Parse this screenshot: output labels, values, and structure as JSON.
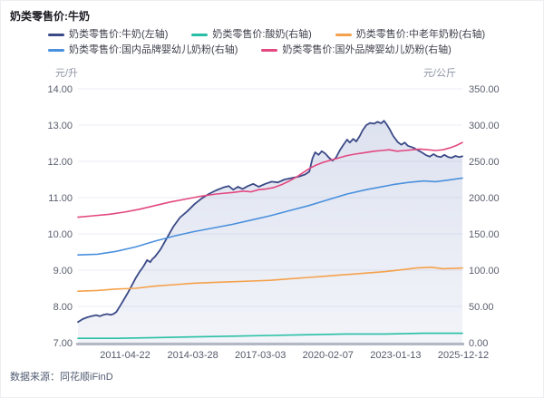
{
  "header": {
    "title": "奶类零售价:牛奶"
  },
  "footer": {
    "source": "数据来源：同花顺iFinD"
  },
  "chart_data": {
    "type": "line",
    "title": "奶类零售价:牛奶",
    "grid": true,
    "legend_position": "top-left",
    "left_axis": {
      "unit": "元/升",
      "min": 7,
      "max": 14,
      "ticks": [
        "14.00",
        "13.00",
        "12.00",
        "11.00",
        "10.00",
        "9.00",
        "8.00",
        "7.00"
      ]
    },
    "right_axis": {
      "unit": "元/公斤",
      "min": 0,
      "max": 350,
      "ticks": [
        "350.00",
        "300.00",
        "250.00",
        "200.00",
        "150.00",
        "100.00",
        "50.00",
        "0.00"
      ]
    },
    "x_axis": {
      "tick_labels": [
        "2011-04-22",
        "2014-03-28",
        "2017-03-03",
        "2020-02-07",
        "2023-01-13",
        "2025-12-12"
      ]
    },
    "series": [
      {
        "name": "奶类零售价:牛奶(左轴)",
        "axis": "left",
        "color": "#3b4a87",
        "area": true,
        "points": [
          [
            0.0,
            7.57
          ],
          [
            0.012,
            7.65
          ],
          [
            0.024,
            7.7
          ],
          [
            0.035,
            7.73
          ],
          [
            0.047,
            7.76
          ],
          [
            0.057,
            7.73
          ],
          [
            0.066,
            7.77
          ],
          [
            0.076,
            7.79
          ],
          [
            0.085,
            7.77
          ],
          [
            0.092,
            7.79
          ],
          [
            0.1,
            7.85
          ],
          [
            0.11,
            8.02
          ],
          [
            0.12,
            8.2
          ],
          [
            0.13,
            8.38
          ],
          [
            0.14,
            8.58
          ],
          [
            0.15,
            8.78
          ],
          [
            0.16,
            8.95
          ],
          [
            0.17,
            9.1
          ],
          [
            0.18,
            9.28
          ],
          [
            0.188,
            9.22
          ],
          [
            0.193,
            9.3
          ],
          [
            0.201,
            9.38
          ],
          [
            0.215,
            9.58
          ],
          [
            0.232,
            9.9
          ],
          [
            0.248,
            10.2
          ],
          [
            0.265,
            10.45
          ],
          [
            0.284,
            10.62
          ],
          [
            0.303,
            10.82
          ],
          [
            0.322,
            10.98
          ],
          [
            0.34,
            11.1
          ],
          [
            0.359,
            11.2
          ],
          [
            0.378,
            11.28
          ],
          [
            0.392,
            11.32
          ],
          [
            0.404,
            11.22
          ],
          [
            0.416,
            11.3
          ],
          [
            0.428,
            11.24
          ],
          [
            0.442,
            11.32
          ],
          [
            0.456,
            11.38
          ],
          [
            0.47,
            11.3
          ],
          [
            0.487,
            11.38
          ],
          [
            0.504,
            11.44
          ],
          [
            0.52,
            11.42
          ],
          [
            0.537,
            11.5
          ],
          [
            0.556,
            11.54
          ],
          [
            0.575,
            11.58
          ],
          [
            0.591,
            11.64
          ],
          [
            0.602,
            11.72
          ],
          [
            0.61,
            12.08
          ],
          [
            0.617,
            12.25
          ],
          [
            0.626,
            12.18
          ],
          [
            0.634,
            12.28
          ],
          [
            0.643,
            12.22
          ],
          [
            0.653,
            12.1
          ],
          [
            0.662,
            12.02
          ],
          [
            0.671,
            12.1
          ],
          [
            0.681,
            12.3
          ],
          [
            0.69,
            12.45
          ],
          [
            0.7,
            12.6
          ],
          [
            0.707,
            12.52
          ],
          [
            0.716,
            12.62
          ],
          [
            0.724,
            12.55
          ],
          [
            0.733,
            12.7
          ],
          [
            0.74,
            12.85
          ],
          [
            0.75,
            13.0
          ],
          [
            0.76,
            13.06
          ],
          [
            0.77,
            13.04
          ],
          [
            0.779,
            13.09
          ],
          [
            0.789,
            13.05
          ],
          [
            0.796,
            13.12
          ],
          [
            0.803,
            13.02
          ],
          [
            0.811,
            12.88
          ],
          [
            0.82,
            12.7
          ],
          [
            0.832,
            12.53
          ],
          [
            0.841,
            12.46
          ],
          [
            0.85,
            12.52
          ],
          [
            0.858,
            12.43
          ],
          [
            0.872,
            12.38
          ],
          [
            0.882,
            12.32
          ],
          [
            0.894,
            12.25
          ],
          [
            0.906,
            12.17
          ],
          [
            0.915,
            12.13
          ],
          [
            0.925,
            12.2
          ],
          [
            0.934,
            12.14
          ],
          [
            0.944,
            12.12
          ],
          [
            0.953,
            12.18
          ],
          [
            0.963,
            12.12
          ],
          [
            0.972,
            12.1
          ],
          [
            0.982,
            12.15
          ],
          [
            0.991,
            12.12
          ],
          [
            1.0,
            12.14
          ]
        ]
      },
      {
        "name": "奶类零售价:酸奶(右轴)",
        "axis": "right",
        "color": "#27bfa5",
        "area": false,
        "points": [
          [
            0.0,
            6
          ],
          [
            0.1,
            6
          ],
          [
            0.2,
            7
          ],
          [
            0.3,
            8
          ],
          [
            0.4,
            9
          ],
          [
            0.5,
            10
          ],
          [
            0.6,
            11
          ],
          [
            0.7,
            12
          ],
          [
            0.8,
            12
          ],
          [
            0.9,
            13
          ],
          [
            1.0,
            13
          ]
        ]
      },
      {
        "name": "奶类零售价:中老年奶粉(右轴)",
        "axis": "right",
        "color": "#f5a14b",
        "area": false,
        "points": [
          [
            0.0,
            71
          ],
          [
            0.05,
            72
          ],
          [
            0.1,
            74
          ],
          [
            0.15,
            75
          ],
          [
            0.2,
            78
          ],
          [
            0.25,
            80
          ],
          [
            0.3,
            82
          ],
          [
            0.35,
            83
          ],
          [
            0.4,
            84
          ],
          [
            0.45,
            85
          ],
          [
            0.5,
            86
          ],
          [
            0.55,
            88
          ],
          [
            0.6,
            90
          ],
          [
            0.65,
            92
          ],
          [
            0.7,
            94
          ],
          [
            0.75,
            96
          ],
          [
            0.8,
            98
          ],
          [
            0.85,
            101
          ],
          [
            0.88,
            103
          ],
          [
            0.92,
            104
          ],
          [
            0.95,
            102
          ],
          [
            1.0,
            103
          ]
        ]
      },
      {
        "name": "奶类零售价:国内品牌婴幼儿奶粉(右轴)",
        "axis": "right",
        "color": "#4a90dd",
        "area": false,
        "points": [
          [
            0.0,
            121
          ],
          [
            0.05,
            122
          ],
          [
            0.1,
            126
          ],
          [
            0.15,
            132
          ],
          [
            0.2,
            140
          ],
          [
            0.25,
            147
          ],
          [
            0.3,
            153
          ],
          [
            0.35,
            158
          ],
          [
            0.4,
            163
          ],
          [
            0.45,
            169
          ],
          [
            0.5,
            175
          ],
          [
            0.55,
            182
          ],
          [
            0.6,
            189
          ],
          [
            0.65,
            197
          ],
          [
            0.7,
            205
          ],
          [
            0.75,
            211
          ],
          [
            0.78,
            214
          ],
          [
            0.82,
            218
          ],
          [
            0.86,
            221
          ],
          [
            0.9,
            223
          ],
          [
            0.93,
            222
          ],
          [
            0.96,
            224
          ],
          [
            1.0,
            227
          ]
        ]
      },
      {
        "name": "奶类零售价:国外品牌婴幼儿奶粉(右轴)",
        "axis": "right",
        "color": "#e34880",
        "area": false,
        "points": [
          [
            0.0,
            173
          ],
          [
            0.04,
            175
          ],
          [
            0.08,
            177
          ],
          [
            0.12,
            180
          ],
          [
            0.16,
            184
          ],
          [
            0.2,
            189
          ],
          [
            0.24,
            194
          ],
          [
            0.28,
            198
          ],
          [
            0.32,
            202
          ],
          [
            0.36,
            205
          ],
          [
            0.4,
            207
          ],
          [
            0.43,
            209
          ],
          [
            0.45,
            208
          ],
          [
            0.47,
            211
          ],
          [
            0.49,
            212
          ],
          [
            0.51,
            214
          ],
          [
            0.53,
            218
          ],
          [
            0.55,
            223
          ],
          [
            0.57,
            229
          ],
          [
            0.59,
            236
          ],
          [
            0.605,
            241
          ],
          [
            0.62,
            245
          ],
          [
            0.64,
            249
          ],
          [
            0.66,
            252
          ],
          [
            0.68,
            255
          ],
          [
            0.7,
            258
          ],
          [
            0.72,
            260
          ],
          [
            0.745,
            262
          ],
          [
            0.77,
            264
          ],
          [
            0.79,
            265
          ],
          [
            0.81,
            266
          ],
          [
            0.83,
            264
          ],
          [
            0.85,
            265
          ],
          [
            0.87,
            266
          ],
          [
            0.89,
            267
          ],
          [
            0.91,
            266
          ],
          [
            0.93,
            265
          ],
          [
            0.95,
            266
          ],
          [
            0.97,
            269
          ],
          [
            0.985,
            272
          ],
          [
            1.0,
            276
          ]
        ]
      }
    ]
  }
}
